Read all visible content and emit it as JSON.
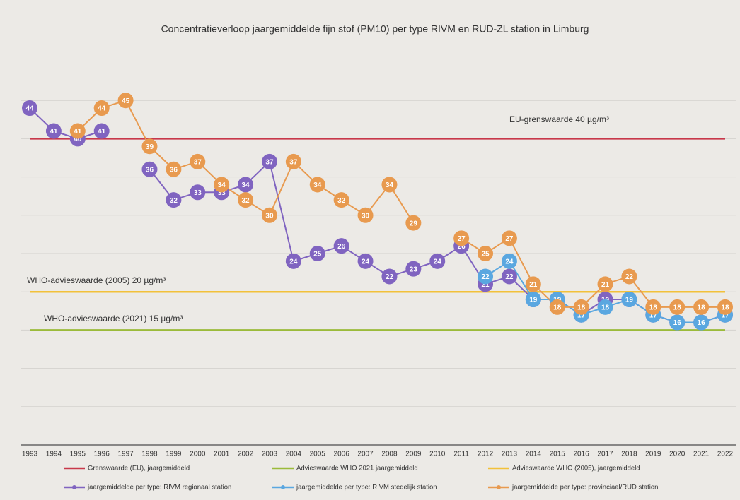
{
  "chart_data": {
    "type": "line",
    "title": "Concentratieverloop jaargemiddelde fijn stof (PM10) per type RIVM en RUD-ZL station in Limburg",
    "categories": [
      "1993",
      "1994",
      "1995",
      "1996",
      "1997",
      "1998",
      "1999",
      "2000",
      "2001",
      "2002",
      "2003",
      "2004",
      "2005",
      "2006",
      "2007",
      "2008",
      "2009",
      "2010",
      "2011",
      "2012",
      "2013",
      "2014",
      "2015",
      "2016",
      "2017",
      "2018",
      "2019",
      "2020",
      "2021",
      "2022"
    ],
    "ylim": [
      0,
      50
    ],
    "gridlines": [
      5,
      10,
      15,
      20,
      25,
      30,
      35,
      40,
      45
    ],
    "grid": true,
    "annotations": [
      "EU-grenswaarde 40 µg/m³",
      "WHO-advieswaarde (2005) 20 µg/m³",
      "WHO-advieswaarde (2021) 15 µg/m³"
    ],
    "series": [
      {
        "name": "Grenswaarde (EU), jaargemiddeld",
        "color": "#c8384a",
        "markers": false,
        "values": [
          40,
          40,
          40,
          40,
          40,
          40,
          40,
          40,
          40,
          40,
          40,
          40,
          40,
          40,
          40,
          40,
          40,
          40,
          40,
          40,
          40,
          40,
          40,
          40,
          40,
          40,
          40,
          40,
          40,
          40
        ]
      },
      {
        "name": "Advieswaarde WHO 2021 jaargemiddeld",
        "color": "#9bbb3a",
        "markers": false,
        "values": [
          15,
          15,
          15,
          15,
          15,
          15,
          15,
          15,
          15,
          15,
          15,
          15,
          15,
          15,
          15,
          15,
          15,
          15,
          15,
          15,
          15,
          15,
          15,
          15,
          15,
          15,
          15,
          15,
          15,
          15
        ]
      },
      {
        "name": "Advieswaarde WHO (2005), jaargemiddeld",
        "color": "#f2c13a",
        "markers": false,
        "values": [
          20,
          20,
          20,
          20,
          20,
          20,
          20,
          20,
          20,
          20,
          20,
          20,
          20,
          20,
          20,
          20,
          20,
          20,
          20,
          20,
          20,
          20,
          20,
          20,
          20,
          20,
          20,
          20,
          20,
          20
        ]
      },
      {
        "name": "jaargemiddelde per type: RIVM regionaal station",
        "color": "#8064c0",
        "markers": true,
        "values": [
          44,
          41,
          40,
          41,
          null,
          36,
          32,
          33,
          33,
          34,
          37,
          24,
          25,
          26,
          24,
          22,
          23,
          24,
          26,
          21,
          22,
          19,
          19,
          17,
          19,
          19,
          17,
          16,
          16,
          17
        ]
      },
      {
        "name": "jaargemiddelde per type: RIVM stedelijk station",
        "color": "#5aa7e0",
        "markers": true,
        "values": [
          null,
          null,
          null,
          null,
          null,
          null,
          null,
          null,
          null,
          null,
          null,
          null,
          null,
          null,
          null,
          null,
          null,
          null,
          null,
          22,
          24,
          19,
          19,
          17,
          18,
          19,
          17,
          16,
          16,
          17
        ]
      },
      {
        "name": "jaargemiddelde per type: provinciaal/RUD station",
        "color": "#e89a4f",
        "markers": true,
        "values": [
          null,
          null,
          41,
          44,
          45,
          39,
          36,
          37,
          34,
          32,
          30,
          37,
          34,
          32,
          30,
          34,
          29,
          null,
          27,
          25,
          27,
          21,
          18,
          18,
          21,
          22,
          18,
          18,
          18,
          18
        ]
      }
    ]
  }
}
